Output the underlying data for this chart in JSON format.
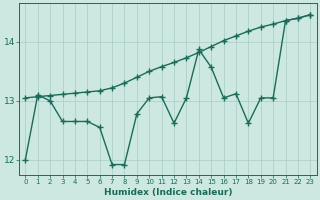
{
  "line1_x": [
    0,
    1,
    2,
    3,
    4,
    5,
    6,
    7,
    8,
    9,
    10,
    11,
    12,
    13,
    14,
    15,
    16,
    17,
    18,
    19,
    20,
    21,
    22,
    23
  ],
  "line1_y": [
    13.05,
    13.07,
    13.09,
    13.11,
    13.13,
    13.15,
    13.17,
    13.22,
    13.3,
    13.4,
    13.5,
    13.58,
    13.65,
    13.73,
    13.82,
    13.92,
    14.02,
    14.1,
    14.18,
    14.25,
    14.3,
    14.36,
    14.4,
    14.46
  ],
  "line2_x": [
    0,
    1,
    2,
    3,
    4,
    5,
    6,
    7,
    8,
    9,
    10,
    11,
    12,
    13,
    14,
    15,
    16,
    17,
    18,
    19,
    20,
    21,
    22,
    23
  ],
  "line2_y": [
    12.0,
    13.1,
    13.0,
    12.65,
    12.65,
    12.65,
    12.55,
    11.92,
    11.92,
    12.78,
    13.05,
    13.07,
    12.62,
    13.05,
    13.87,
    13.57,
    13.05,
    13.12,
    12.62,
    13.05,
    13.05,
    14.36,
    14.4,
    14.46
  ],
  "color": "#1a6b5a",
  "bg_color": "#cde8e0",
  "grid_color": "#a8ccc4",
  "xlabel": "Humidex (Indice chaleur)",
  "xlim": [
    -0.5,
    23.5
  ],
  "ylim": [
    11.75,
    14.65
  ],
  "yticks": [
    12,
    13,
    14
  ],
  "xticks": [
    0,
    1,
    2,
    3,
    4,
    5,
    6,
    7,
    8,
    9,
    10,
    11,
    12,
    13,
    14,
    15,
    16,
    17,
    18,
    19,
    20,
    21,
    22,
    23
  ],
  "marker": "+",
  "markersize": 4,
  "linewidth": 1.0
}
